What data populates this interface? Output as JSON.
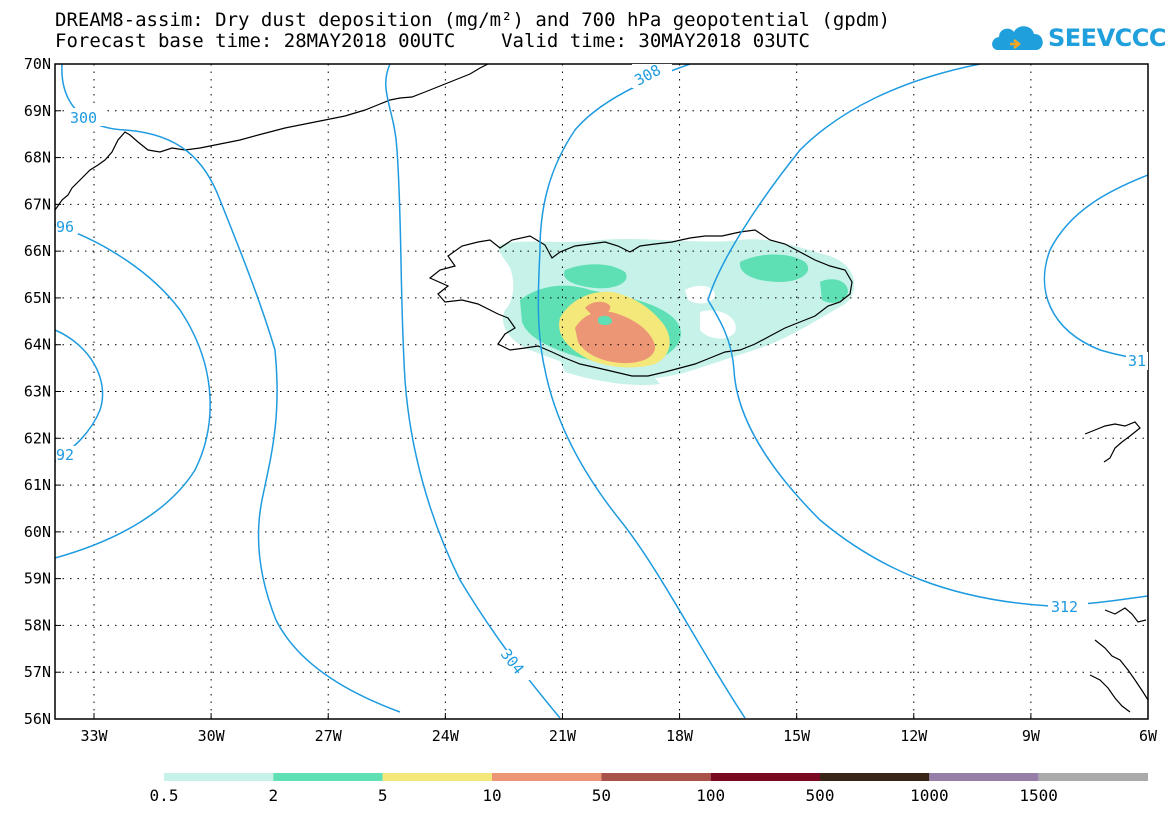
{
  "header": {
    "title_line1": "DREAM8-assim: Dry dust deposition (mg/m²) and 700 hPa geopotential (gpdm)",
    "title_line2": "Forecast base time: 28MAY2018 00UTC    Valid time: 30MAY2018 03UTC"
  },
  "logo": {
    "text": "SEEVCCC",
    "icon": "cloud-icon",
    "color": "#1f9fdc"
  },
  "map": {
    "lat_labels": [
      "70N",
      "69N",
      "68N",
      "67N",
      "66N",
      "65N",
      "64N",
      "63N",
      "62N",
      "61N",
      "60N",
      "59N",
      "58N",
      "57N",
      "56N"
    ],
    "lon_labels": [
      "33W",
      "30W",
      "27W",
      "24W",
      "21W",
      "18W",
      "15W",
      "12W",
      "9W",
      "6W"
    ],
    "contour_color": "#1e9be0",
    "contour_labels": [
      "300",
      "96",
      "92",
      "304",
      "308",
      "312",
      "31"
    ]
  },
  "legend": {
    "labels": [
      "0.5",
      "2",
      "5",
      "10",
      "50",
      "100",
      "500",
      "1000",
      "1500"
    ],
    "colors": [
      "#c6f2ea",
      "#5ee0b4",
      "#f4e87a",
      "#ec9676",
      "#a8524a",
      "#7a0a22",
      "#3a2616",
      "#967ea8",
      "#aaaaaa"
    ]
  }
}
